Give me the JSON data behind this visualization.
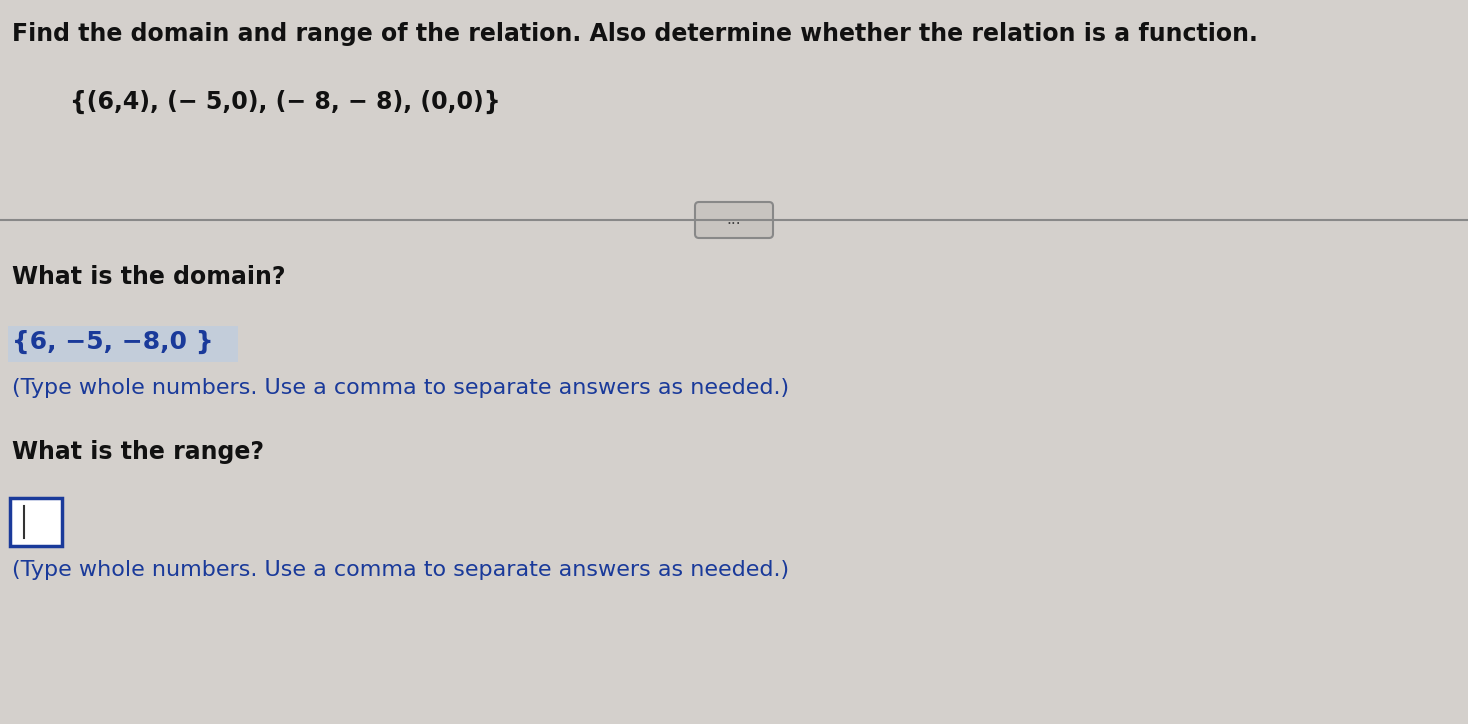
{
  "background_color": "#d4d0cc",
  "title_text": "Find the domain and range of the relation. Also determine whether the relation is a function.",
  "relation_text": "{(6,4), (− 5,0), (− 8, − 8), (0,0)}",
  "divider_button_text": "...",
  "domain_question": "What is the domain?",
  "domain_answer": "{6, −5, −8,0 }",
  "domain_hint": "(Type whole numbers. Use a comma to separate answers as needed.)",
  "range_question": "What is the range?",
  "range_hint": "(Type whole numbers. Use a comma to separate answers as needed.)",
  "title_fontsize": 17,
  "relation_fontsize": 17,
  "body_fontsize": 17,
  "answer_fontsize": 18,
  "hint_fontsize": 16,
  "title_color": "#111111",
  "relation_color": "#111111",
  "question_color": "#111111",
  "answer_color": "#1a3a9a",
  "hint_color": "#1a3a9a",
  "button_bg": "#c8c4c0",
  "button_edge": "#888888",
  "answer_highlight": "#b8cce4",
  "input_box_edge": "#1a3a9a",
  "input_box_bg": "#ffffff",
  "divider_color": "#888888"
}
